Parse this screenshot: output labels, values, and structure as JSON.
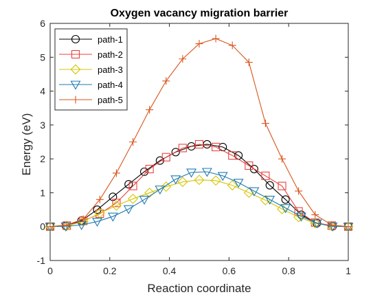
{
  "chart_data": {
    "type": "line",
    "title": "Oxygen vacancy migration barrier",
    "xlabel": "Reaction coordinate",
    "ylabel": "Energy (eV)",
    "xlim": [
      0,
      1
    ],
    "ylim": [
      -1,
      6
    ],
    "xticks": [
      "0",
      "0.2",
      "0.4",
      "0.6",
      "0.8",
      "1"
    ],
    "yticks": [
      "-1",
      "0",
      "1",
      "2",
      "3",
      "4",
      "5",
      "6"
    ],
    "grid": false,
    "legend_position": "top-left",
    "series": [
      {
        "name": "path-1",
        "color": "#000000",
        "marker": "circle",
        "x": [
          0,
          0.0526,
          0.1053,
          0.1579,
          0.2105,
          0.2632,
          0.3158,
          0.3684,
          0.4211,
          0.4737,
          0.5263,
          0.5789,
          0.6316,
          0.6842,
          0.7368,
          0.7895,
          0.8421,
          0.8947,
          0.9474,
          1
        ],
        "y": [
          0,
          0.02,
          0.18,
          0.5,
          0.88,
          1.25,
          1.62,
          1.95,
          2.2,
          2.37,
          2.43,
          2.35,
          2.1,
          1.7,
          1.22,
          0.8,
          0.35,
          0.1,
          0.01,
          0
        ]
      },
      {
        "name": "path-2",
        "color": "#E8413C",
        "marker": "square",
        "x": [
          0,
          0.0556,
          0.1111,
          0.1667,
          0.2222,
          0.2778,
          0.3333,
          0.3889,
          0.4444,
          0.5,
          0.5556,
          0.6111,
          0.6667,
          0.7222,
          0.7778,
          0.8333,
          0.8889,
          0.9444,
          1
        ],
        "y": [
          0,
          0.03,
          0.17,
          0.38,
          0.7,
          1.2,
          1.7,
          2.05,
          2.32,
          2.43,
          2.35,
          2.1,
          1.8,
          1.5,
          1.2,
          0.45,
          0.12,
          0.03,
          0
        ]
      },
      {
        "name": "path-3",
        "color": "#D6C400",
        "marker": "diamond",
        "x": [
          0,
          0.0556,
          0.1111,
          0.1667,
          0.2222,
          0.2778,
          0.3333,
          0.3889,
          0.4444,
          0.5,
          0.5556,
          0.6111,
          0.6667,
          0.7222,
          0.7778,
          0.8333,
          0.8889,
          0.9444,
          1
        ],
        "y": [
          0,
          0.02,
          0.15,
          0.4,
          0.62,
          0.82,
          1.0,
          1.18,
          1.32,
          1.38,
          1.36,
          1.22,
          1.0,
          0.78,
          0.52,
          0.28,
          0.1,
          0.02,
          0
        ]
      },
      {
        "name": "path-4",
        "color": "#1F7AB3",
        "marker": "triangle-down",
        "x": [
          0,
          0.0526,
          0.1053,
          0.1579,
          0.2105,
          0.2632,
          0.3158,
          0.3684,
          0.4211,
          0.4737,
          0.5263,
          0.5789,
          0.6316,
          0.6842,
          0.7368,
          0.7895,
          0.8421,
          0.8947,
          0.9474,
          1
        ],
        "y": [
          0,
          0.01,
          0.05,
          0.15,
          0.3,
          0.52,
          0.8,
          1.1,
          1.4,
          1.6,
          1.62,
          1.5,
          1.3,
          1.05,
          0.8,
          0.55,
          0.3,
          0.1,
          0.01,
          0
        ]
      },
      {
        "name": "path-5",
        "color": "#D95319",
        "marker": "plus",
        "x": [
          0,
          0.0556,
          0.1111,
          0.1667,
          0.2222,
          0.2778,
          0.3333,
          0.3889,
          0.4444,
          0.5,
          0.5556,
          0.6111,
          0.6667,
          0.7222,
          0.7778,
          0.8333,
          0.8889,
          0.9444,
          1
        ],
        "y": [
          0,
          0.05,
          0.22,
          0.8,
          1.58,
          2.5,
          3.45,
          4.3,
          4.95,
          5.4,
          5.55,
          5.35,
          4.85,
          3.05,
          2.0,
          1.05,
          0.35,
          0.05,
          0
        ]
      }
    ]
  }
}
